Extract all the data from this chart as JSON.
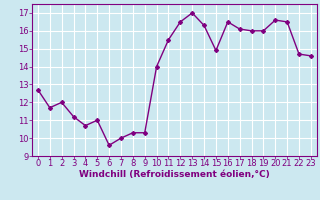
{
  "x": [
    0,
    1,
    2,
    3,
    4,
    5,
    6,
    7,
    8,
    9,
    10,
    11,
    12,
    13,
    14,
    15,
    16,
    17,
    18,
    19,
    20,
    21,
    22,
    23
  ],
  "y": [
    12.7,
    11.7,
    12.0,
    11.2,
    10.7,
    11.0,
    9.6,
    10.0,
    10.3,
    10.3,
    14.0,
    15.5,
    16.5,
    17.0,
    16.3,
    14.9,
    16.5,
    16.1,
    16.0,
    16.0,
    16.6,
    16.5,
    14.7,
    14.6
  ],
  "line_color": "#800080",
  "marker": "D",
  "marker_size": 2.0,
  "line_width": 1.0,
  "bg_color": "#cce8f0",
  "grid_color": "#ffffff",
  "xlabel": "Windchill (Refroidissement éolien,°C)",
  "xlabel_color": "#800080",
  "xlabel_fontsize": 6.5,
  "tick_color": "#800080",
  "tick_fontsize": 6.0,
  "ylim": [
    9,
    17.5
  ],
  "xlim": [
    -0.5,
    23.5
  ],
  "yticks": [
    9,
    10,
    11,
    12,
    13,
    14,
    15,
    16,
    17
  ],
  "xticks": [
    0,
    1,
    2,
    3,
    4,
    5,
    6,
    7,
    8,
    9,
    10,
    11,
    12,
    13,
    14,
    15,
    16,
    17,
    18,
    19,
    20,
    21,
    22,
    23
  ]
}
